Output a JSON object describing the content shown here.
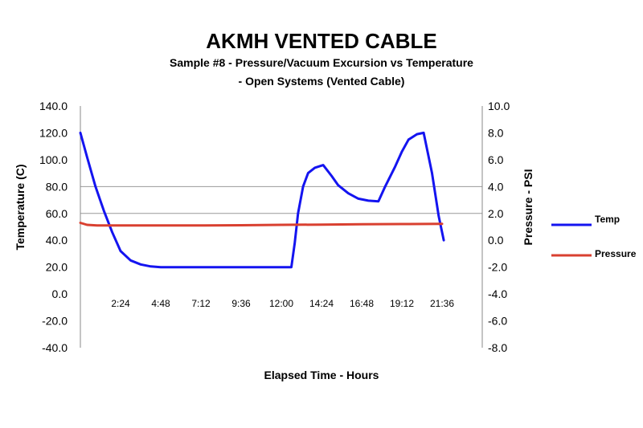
{
  "chart_data": {
    "type": "line",
    "title": "AKMH VENTED CABLE",
    "subtitle_lines": [
      "Sample #8 - Pressure/Vacuum Excursion vs Temperature",
      "- Open Systems (Vented Cable)"
    ],
    "xlabel": "Elapsed Time - Hours",
    "ylabel_left": "Temperature (C)",
    "ylabel_right": "Pressure - PSI",
    "x_tick_labels": [
      "2:24",
      "4:48",
      "7:12",
      "9:36",
      "12:00",
      "14:24",
      "16:48",
      "19:12",
      "21:36"
    ],
    "x_tick_values": [
      2.4,
      4.8,
      7.2,
      9.6,
      12.0,
      14.4,
      16.8,
      19.2,
      21.6
    ],
    "xlim": [
      0,
      24
    ],
    "y_left_ticks": [
      "140.0",
      "120.0",
      "100.0",
      "80.0",
      "60.0",
      "40.0",
      "20.0",
      "0.0",
      "-20.0",
      "-40.0"
    ],
    "y_left_values": [
      140,
      120,
      100,
      80,
      60,
      40,
      20,
      0,
      -20,
      -40
    ],
    "ylim_left": [
      -40,
      140
    ],
    "y_right_ticks": [
      "10.0",
      "8.0",
      "6.0",
      "4.0",
      "2.0",
      "0.0",
      "-2.0",
      "-4.0",
      "-6.0",
      "-8.0"
    ],
    "y_right_values": [
      10,
      8,
      6,
      4,
      2,
      0,
      -2,
      -4,
      -6,
      -8
    ],
    "ylim_right": [
      -8,
      10
    ],
    "gridlines_left": [
      80,
      60
    ],
    "legend_position": "right",
    "series": [
      {
        "name": "Temp",
        "axis": "left",
        "color": "#1414f0",
        "x": [
          0,
          0.4,
          0.9,
          1.4,
          1.9,
          2.4,
          3.0,
          3.6,
          4.2,
          4.8,
          6.0,
          7.2,
          8.4,
          9.6,
          10.8,
          12.0,
          12.6,
          12.8,
          13.0,
          13.3,
          13.6,
          14.0,
          14.5,
          15.0,
          15.4,
          16.0,
          16.6,
          17.2,
          17.8,
          18.2,
          18.8,
          19.2,
          19.6,
          20.1,
          20.5,
          21.0,
          21.4,
          21.7
        ],
        "y": [
          120,
          102,
          80,
          62,
          46,
          32,
          25,
          22,
          20.5,
          20,
          20,
          20,
          20,
          20,
          20,
          20,
          20,
          38,
          60,
          80,
          90,
          94,
          96,
          88,
          81,
          75,
          71,
          69.5,
          69,
          80,
          95,
          106,
          115,
          119,
          120,
          90,
          58,
          40
        ]
      },
      {
        "name": "Pressure",
        "axis": "right",
        "color": "#d94030",
        "x": [
          0,
          0.4,
          1.0,
          2.4,
          4.8,
          7.2,
          9.6,
          12.0,
          14.4,
          16.8,
          19.2,
          21.6
        ],
        "y": [
          1.3,
          1.15,
          1.1,
          1.1,
          1.1,
          1.1,
          1.12,
          1.15,
          1.17,
          1.19,
          1.21,
          1.22
        ]
      }
    ]
  }
}
